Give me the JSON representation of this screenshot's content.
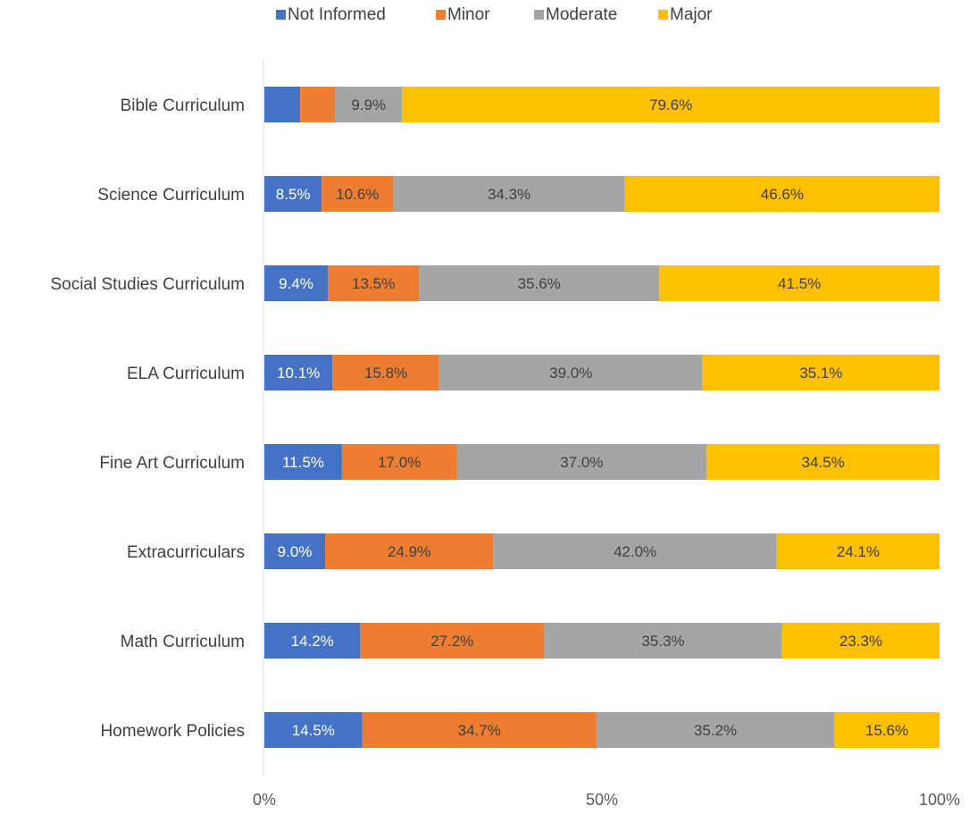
{
  "chart_data": {
    "type": "bar",
    "orientation": "horizontal",
    "stacked": "percent",
    "legend_position": "top",
    "grid": false,
    "xlim": [
      0,
      100
    ],
    "x_ticks": [
      "0%",
      "50%",
      "100%"
    ],
    "categories": [
      "Bible Curriculum",
      "Science Curriculum",
      "Social Studies Curriculum",
      "ELA Curriculum",
      "Fine Art Curriculum",
      "Extracurriculars",
      "Math Curriculum",
      "Homework Policies"
    ],
    "series": [
      {
        "name": "Not Informed",
        "color": "#4472C4",
        "label_color": "#ffffff",
        "values": [
          5.3,
          8.5,
          9.4,
          10.1,
          11.5,
          9.0,
          14.2,
          14.5
        ],
        "labels": [
          "",
          "8.5%",
          "9.4%",
          "10.1%",
          "11.5%",
          "9.0%",
          "14.2%",
          "14.5%"
        ]
      },
      {
        "name": "Minor",
        "color": "#ED7D31",
        "label_color": "#404040",
        "values": [
          5.2,
          10.6,
          13.5,
          15.8,
          17.0,
          24.9,
          27.2,
          34.7
        ],
        "labels": [
          "",
          "10.6%",
          "13.5%",
          "15.8%",
          "17.0%",
          "24.9%",
          "27.2%",
          "34.7%"
        ]
      },
      {
        "name": "Moderate",
        "color": "#A5A5A5",
        "label_color": "#404040",
        "values": [
          9.9,
          34.3,
          35.6,
          39.0,
          37.0,
          42.0,
          35.3,
          35.2
        ],
        "labels": [
          "9.9%",
          "34.3%",
          "35.6%",
          "39.0%",
          "37.0%",
          "42.0%",
          "35.3%",
          "35.2%"
        ]
      },
      {
        "name": "Major",
        "color": "#FFC000",
        "label_color": "#404040",
        "values": [
          79.6,
          46.6,
          41.5,
          35.1,
          34.5,
          24.1,
          23.3,
          15.6
        ],
        "labels": [
          "79.6%",
          "46.6%",
          "41.5%",
          "35.1%",
          "34.5%",
          "24.1%",
          "23.3%",
          "15.6%"
        ]
      }
    ],
    "axis_color": "#d9d9d9"
  }
}
